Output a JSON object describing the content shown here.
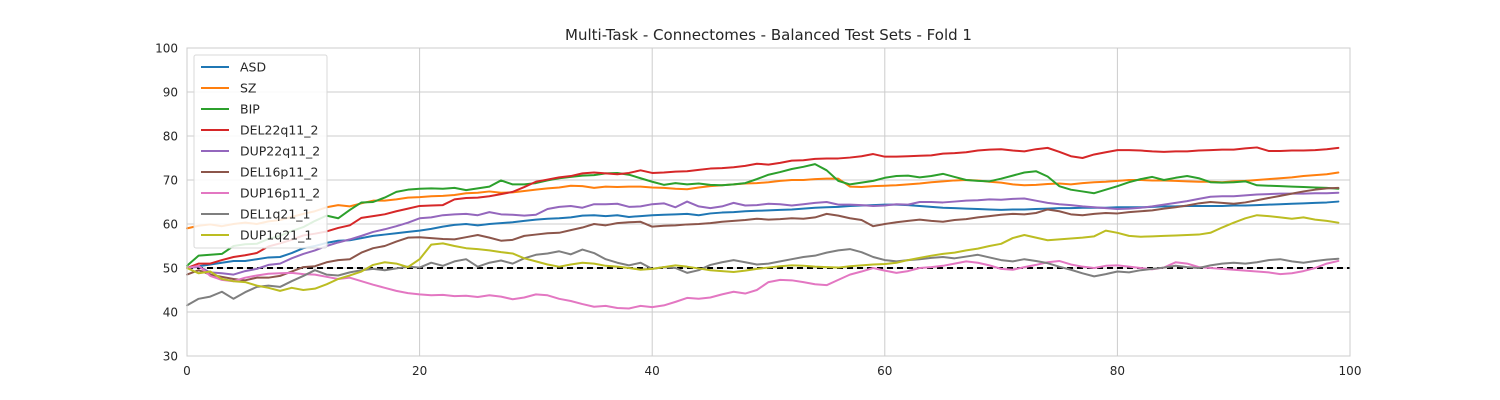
{
  "chart_data": {
    "type": "line",
    "title": "Multi-Task - Connectomes - Balanced Test Sets - Fold 1",
    "xlabel": "",
    "ylabel": "",
    "xlim": [
      0,
      100
    ],
    "ylim": [
      30,
      100
    ],
    "xticks": [
      "0",
      "20",
      "40",
      "60",
      "80",
      "100"
    ],
    "yticks": [
      "30",
      "40",
      "50",
      "60",
      "70",
      "80",
      "90",
      "100"
    ],
    "grid": true,
    "legend_position": "top-left",
    "reference_line": {
      "y": 50,
      "style": "dashed",
      "color": "#000000"
    },
    "x": [
      0,
      1,
      2,
      3,
      4,
      5,
      6,
      7,
      8,
      9,
      10,
      11,
      12,
      13,
      14,
      15,
      16,
      17,
      18,
      19,
      20,
      21,
      22,
      23,
      24,
      25,
      26,
      27,
      28,
      29,
      30,
      31,
      32,
      33,
      34,
      35,
      36,
      37,
      38,
      39,
      40,
      41,
      42,
      43,
      44,
      45,
      46,
      47,
      48,
      49,
      50,
      51,
      52,
      53,
      54,
      55,
      56,
      57,
      58,
      59,
      60,
      61,
      62,
      63,
      64,
      65,
      66,
      67,
      68,
      69,
      70,
      71,
      72,
      73,
      74,
      75,
      76,
      77,
      78,
      79,
      80,
      81,
      82,
      83,
      84,
      85,
      86,
      87,
      88,
      89,
      90,
      91,
      92,
      93,
      94,
      95,
      96,
      97,
      98,
      99
    ],
    "series": [
      {
        "name": "ASD",
        "color": "#1f77b4",
        "values": [
          50.0,
          50.4,
          50.8,
          51.2,
          51.6,
          51.6,
          52.0,
          52.4,
          52.5,
          53.4,
          54.5,
          55.0,
          55.7,
          56.2,
          56.3,
          56.8,
          57.3,
          57.6,
          57.9,
          58.2,
          58.5,
          58.9,
          59.4,
          59.8,
          60.0,
          59.7,
          60.0,
          60.2,
          60.4,
          60.7,
          61.0,
          61.2,
          61.3,
          61.5,
          61.9,
          62.0,
          61.8,
          62.0,
          61.6,
          61.8,
          62.0,
          62.1,
          62.2,
          62.3,
          62.0,
          62.4,
          62.6,
          62.7,
          62.9,
          63.0,
          63.1,
          63.2,
          63.3,
          63.5,
          63.7,
          63.8,
          63.9,
          64.1,
          64.2,
          64.3,
          64.4,
          64.4,
          64.3,
          64.1,
          63.9,
          63.7,
          63.6,
          63.5,
          63.4,
          63.3,
          63.2,
          63.3,
          63.3,
          63.4,
          63.5,
          63.6,
          63.6,
          63.7,
          63.7,
          63.7,
          63.8,
          63.8,
          63.8,
          63.9,
          64.0,
          64.0,
          64.1,
          64.1,
          64.1,
          64.1,
          64.2,
          64.2,
          64.3,
          64.4,
          64.5,
          64.6,
          64.7,
          64.8,
          64.9,
          65.1
        ]
      },
      {
        "name": "SZ",
        "color": "#ff7f0e",
        "values": [
          59.0,
          59.6,
          59.9,
          59.5,
          60.0,
          60.3,
          60.0,
          60.6,
          60.9,
          61.6,
          62.3,
          62.9,
          63.8,
          64.3,
          64.0,
          64.7,
          65.3,
          65.3,
          65.6,
          66.0,
          66.1,
          66.3,
          66.4,
          66.6,
          67.0,
          67.1,
          67.4,
          67.1,
          67.2,
          67.5,
          67.8,
          68.1,
          68.3,
          68.7,
          68.6,
          68.2,
          68.5,
          68.4,
          68.5,
          68.5,
          68.3,
          68.2,
          68.0,
          67.9,
          68.3,
          68.6,
          68.8,
          69.0,
          69.2,
          69.3,
          69.5,
          69.8,
          70.0,
          70.0,
          70.2,
          70.3,
          70.3,
          68.5,
          68.4,
          68.6,
          68.7,
          68.8,
          69.0,
          69.2,
          69.5,
          69.7,
          69.9,
          70.0,
          69.9,
          69.6,
          69.4,
          69.0,
          68.8,
          68.9,
          69.1,
          69.2,
          69.0,
          69.3,
          69.5,
          69.6,
          69.8,
          70.0,
          70.0,
          69.9,
          69.9,
          69.8,
          69.7,
          69.6,
          69.6,
          69.5,
          69.7,
          69.8,
          70.0,
          70.2,
          70.4,
          70.6,
          70.9,
          71.1,
          71.3,
          71.7
        ]
      },
      {
        "name": "BIP",
        "color": "#2ca02c",
        "values": [
          50.5,
          52.8,
          53.0,
          53.2,
          55.0,
          55.4,
          55.5,
          56.6,
          57.3,
          58.4,
          59.3,
          60.7,
          61.9,
          61.3,
          63.2,
          64.9,
          65.0,
          66.0,
          67.3,
          67.8,
          68.0,
          68.1,
          68.0,
          68.2,
          67.7,
          68.1,
          68.5,
          69.9,
          69.0,
          69.0,
          69.3,
          69.9,
          70.4,
          70.7,
          71.0,
          71.1,
          71.5,
          71.6,
          71.2,
          70.4,
          69.6,
          68.9,
          69.3,
          69.0,
          69.2,
          68.9,
          68.8,
          69.0,
          69.3,
          70.2,
          71.2,
          71.8,
          72.5,
          73.0,
          73.6,
          72.2,
          69.8,
          69.0,
          69.4,
          69.8,
          70.5,
          70.9,
          71.0,
          70.6,
          70.9,
          71.4,
          70.7,
          70.0,
          69.8,
          69.7,
          70.3,
          71.0,
          71.7,
          72.0,
          70.8,
          68.6,
          67.8,
          67.4,
          67.0,
          67.8,
          68.6,
          69.5,
          70.2,
          70.7,
          70.0,
          70.5,
          70.9,
          70.4,
          69.5,
          69.4,
          69.5,
          69.7,
          68.8,
          68.7,
          68.6,
          68.5,
          68.4,
          68.3,
          68.2,
          68.0
        ]
      },
      {
        "name": "DEL22q11_2",
        "color": "#d62728",
        "values": [
          50.0,
          51.0,
          51.0,
          51.8,
          52.5,
          52.9,
          53.4,
          54.9,
          55.6,
          56.4,
          57.4,
          57.8,
          58.3,
          59.1,
          59.7,
          61.4,
          61.8,
          62.2,
          62.9,
          63.5,
          64.1,
          64.2,
          64.3,
          65.6,
          65.9,
          66.0,
          66.3,
          66.8,
          67.3,
          68.4,
          69.6,
          70.1,
          70.6,
          70.9,
          71.5,
          71.7,
          71.5,
          71.3,
          71.6,
          72.2,
          71.6,
          71.7,
          71.9,
          72.0,
          72.3,
          72.6,
          72.7,
          72.9,
          73.2,
          73.7,
          73.5,
          73.9,
          74.4,
          74.5,
          74.8,
          74.9,
          74.9,
          75.1,
          75.4,
          75.9,
          75.3,
          75.3,
          75.4,
          75.5,
          75.6,
          76.0,
          76.1,
          76.3,
          76.7,
          76.9,
          77.0,
          76.7,
          76.5,
          77.0,
          77.3,
          76.4,
          75.4,
          75.0,
          75.8,
          76.3,
          76.8,
          76.8,
          76.7,
          76.5,
          76.4,
          76.5,
          76.5,
          76.7,
          76.8,
          76.9,
          76.9,
          77.2,
          77.4,
          76.6,
          76.6,
          76.7,
          76.7,
          76.8,
          77.0,
          77.3
        ]
      },
      {
        "name": "DUP22q11_2",
        "color": "#9467bd",
        "values": [
          50.0,
          50.3,
          49.0,
          48.8,
          48.5,
          49.3,
          49.8,
          50.7,
          51.0,
          52.2,
          53.2,
          54.0,
          55.0,
          55.8,
          56.5,
          57.3,
          58.2,
          58.8,
          59.5,
          60.3,
          61.3,
          61.5,
          62.0,
          62.2,
          62.3,
          62.0,
          62.7,
          62.2,
          62.1,
          61.9,
          62.1,
          63.4,
          63.9,
          64.1,
          63.7,
          64.5,
          64.5,
          64.6,
          63.9,
          64.0,
          64.5,
          64.7,
          63.8,
          65.1,
          64.0,
          63.6,
          64.0,
          64.8,
          64.2,
          64.3,
          64.6,
          64.5,
          64.2,
          64.5,
          64.8,
          65.0,
          64.4,
          64.4,
          64.3,
          64.1,
          64.2,
          64.5,
          64.4,
          65.0,
          65.0,
          64.9,
          65.1,
          65.3,
          65.4,
          65.6,
          65.5,
          65.7,
          65.8,
          65.3,
          64.8,
          64.5,
          64.3,
          64.0,
          63.8,
          63.6,
          63.4,
          63.5,
          63.7,
          64.0,
          64.4,
          64.8,
          65.2,
          65.7,
          66.2,
          66.3,
          66.3,
          66.5,
          66.7,
          66.8,
          66.9,
          66.9,
          66.9,
          67.0,
          67.0,
          67.1
        ]
      },
      {
        "name": "DEL16p11_2",
        "color": "#8c564b",
        "values": [
          48.5,
          49.5,
          48.5,
          48.0,
          47.5,
          47.2,
          47.8,
          47.8,
          48.2,
          49.2,
          50.2,
          50.4,
          51.3,
          51.8,
          52.0,
          53.5,
          54.5,
          55.0,
          56.0,
          56.9,
          57.0,
          56.8,
          56.6,
          56.5,
          57.0,
          57.5,
          56.9,
          56.2,
          56.4,
          57.3,
          57.6,
          57.9,
          58.0,
          58.6,
          59.2,
          60.0,
          59.7,
          60.2,
          60.4,
          60.5,
          59.4,
          59.6,
          59.7,
          59.9,
          60.0,
          60.2,
          60.5,
          60.7,
          60.9,
          61.2,
          61.0,
          61.1,
          61.3,
          61.2,
          61.5,
          62.3,
          61.9,
          61.3,
          60.9,
          59.5,
          60.0,
          60.4,
          60.7,
          61.0,
          60.7,
          60.5,
          60.9,
          61.1,
          61.5,
          61.8,
          62.1,
          62.3,
          62.2,
          62.5,
          63.3,
          62.9,
          62.2,
          62.0,
          62.3,
          62.5,
          62.4,
          62.7,
          62.9,
          63.1,
          63.5,
          63.8,
          64.2,
          64.7,
          65.0,
          64.8,
          64.6,
          64.9,
          65.4,
          65.9,
          66.4,
          66.9,
          67.4,
          67.8,
          68.1,
          68.2
        ]
      },
      {
        "name": "DUP16p11_2",
        "color": "#e377c2",
        "values": [
          50.0,
          50.5,
          48.2,
          47.3,
          47.0,
          47.8,
          48.3,
          48.7,
          48.8,
          48.9,
          48.6,
          48.5,
          48.0,
          47.5,
          47.8,
          47.0,
          46.2,
          45.5,
          44.8,
          44.3,
          44.0,
          43.8,
          43.9,
          43.6,
          43.7,
          43.4,
          43.8,
          43.5,
          42.9,
          43.3,
          44.0,
          43.8,
          43.0,
          42.5,
          41.8,
          41.2,
          41.4,
          40.9,
          40.8,
          41.4,
          41.1,
          41.5,
          42.3,
          43.2,
          43.0,
          43.3,
          44.0,
          44.6,
          44.2,
          45.0,
          46.8,
          47.3,
          47.2,
          46.8,
          46.3,
          46.1,
          47.3,
          48.5,
          49.2,
          50.0,
          49.4,
          48.9,
          49.3,
          50.0,
          50.2,
          50.5,
          51.0,
          51.5,
          51.2,
          50.6,
          49.8,
          49.6,
          50.2,
          50.7,
          51.3,
          51.6,
          50.8,
          50.3,
          50.0,
          50.5,
          50.6,
          50.3,
          50.0,
          49.7,
          50.1,
          51.3,
          51.0,
          50.2,
          50.0,
          49.8,
          49.6,
          49.4,
          49.2,
          49.0,
          48.6,
          48.8,
          49.3,
          50.0,
          51.0,
          51.6
        ]
      },
      {
        "name": "DEL1q21_1",
        "color": "#7f7f7f",
        "values": [
          41.5,
          43.0,
          43.5,
          44.6,
          43.0,
          44.5,
          45.7,
          46.0,
          45.7,
          47.0,
          48.2,
          49.5,
          48.5,
          48.3,
          49.0,
          49.5,
          49.8,
          49.5,
          49.9,
          50.3,
          50.1,
          51.2,
          50.5,
          51.5,
          52.0,
          50.3,
          51.2,
          51.7,
          51.0,
          52.2,
          53.0,
          53.3,
          53.8,
          53.1,
          54.2,
          53.4,
          52.0,
          51.2,
          50.6,
          51.2,
          49.8,
          50.2,
          50.0,
          48.9,
          49.5,
          50.7,
          51.3,
          51.8,
          51.3,
          50.8,
          51.0,
          51.5,
          52.0,
          52.5,
          52.8,
          53.5,
          54.0,
          54.3,
          53.6,
          52.5,
          51.8,
          51.5,
          51.8,
          52.0,
          52.3,
          52.5,
          52.2,
          52.6,
          53.0,
          52.4,
          51.8,
          51.5,
          52.0,
          51.6,
          51.1,
          50.3,
          49.6,
          48.8,
          48.1,
          48.6,
          49.2,
          49.0,
          49.5,
          49.8,
          50.1,
          50.5,
          50.2,
          50.0,
          50.6,
          51.0,
          51.2,
          51.0,
          51.3,
          51.8,
          52.0,
          51.5,
          51.2,
          51.6,
          51.9,
          52.1
        ]
      },
      {
        "name": "DUP1q21_1",
        "color": "#bcbd22",
        "values": [
          50.0,
          48.8,
          49.2,
          47.5,
          47.0,
          46.8,
          46.0,
          45.5,
          44.8,
          45.5,
          45.0,
          45.3,
          46.3,
          47.5,
          48.3,
          49.2,
          50.7,
          51.3,
          51.0,
          50.2,
          52.0,
          55.3,
          55.6,
          55.0,
          54.5,
          54.3,
          54.0,
          53.6,
          53.3,
          52.2,
          51.5,
          50.8,
          50.3,
          50.8,
          51.2,
          51.0,
          50.5,
          50.3,
          50.0,
          49.6,
          49.8,
          50.2,
          50.6,
          50.3,
          49.9,
          49.5,
          49.3,
          49.1,
          49.4,
          49.8,
          50.1,
          50.4,
          50.6,
          50.5,
          50.3,
          50.2,
          50.1,
          50.4,
          50.6,
          50.8,
          50.9,
          51.2,
          51.8,
          52.3,
          52.8,
          53.2,
          53.5,
          54.0,
          54.4,
          55.0,
          55.5,
          56.8,
          57.5,
          56.9,
          56.3,
          56.5,
          56.7,
          56.9,
          57.2,
          58.5,
          58.0,
          57.3,
          57.1,
          57.2,
          57.3,
          57.4,
          57.5,
          57.6,
          58.0,
          59.2,
          60.3,
          61.3,
          62.0,
          61.8,
          61.5,
          61.2,
          61.5,
          61.0,
          60.7,
          60.3
        ]
      }
    ]
  }
}
